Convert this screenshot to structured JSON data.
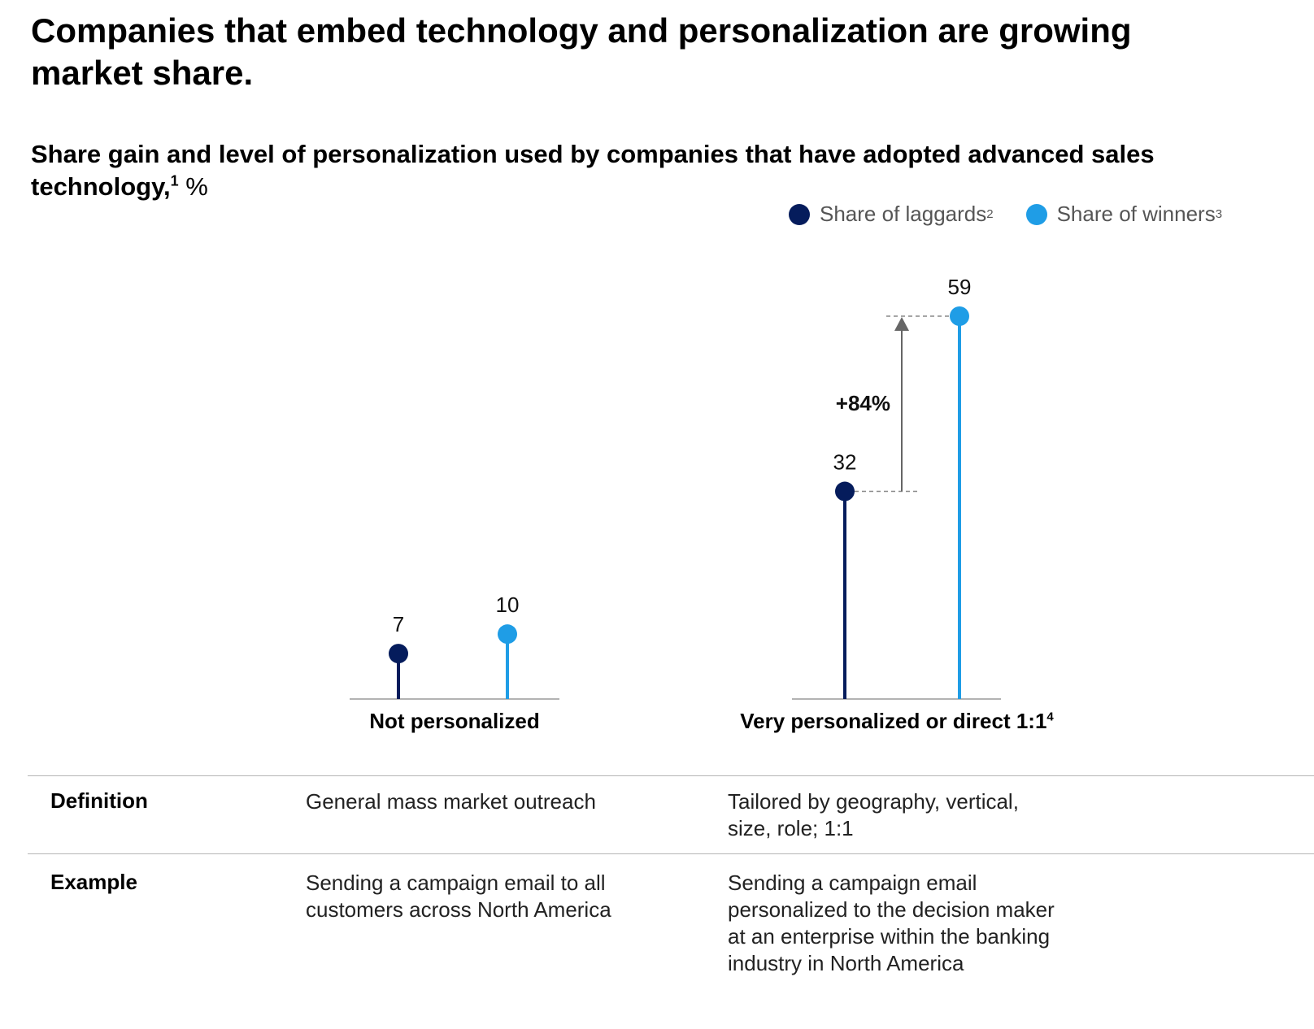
{
  "title": "Companies that embed technology and personalization are growing market share.",
  "subtitle": {
    "text": "Share gain and level of personalization used by companies that have adopted advanced sales technology,",
    "footnote": "1",
    "unit": "%"
  },
  "legend": [
    {
      "label": "Share of laggards",
      "footnote": "2",
      "color": "#051c5c"
    },
    {
      "label": "Share of winners",
      "footnote": "3",
      "color": "#1f9de6"
    }
  ],
  "chart_data": {
    "type": "lollipop",
    "title": "Share gain and level of personalization used by companies that have adopted advanced sales technology, %",
    "categories": [
      "Not personalized",
      "Very personalized or direct 1:1"
    ],
    "series": [
      {
        "name": "Share of laggards",
        "values": [
          7,
          32
        ],
        "color": "#051c5c"
      },
      {
        "name": "Share of winners",
        "values": [
          10,
          59
        ],
        "color": "#1f9de6"
      }
    ],
    "value_labels": [
      [
        "7",
        "10"
      ],
      [
        "32",
        "59"
      ]
    ],
    "annotation": {
      "text": "+84%",
      "category_index": 1,
      "from": 32,
      "to": 59
    },
    "ylim": [
      0,
      59
    ],
    "grid": false,
    "legend_position": "top-right"
  },
  "categories": [
    {
      "label": "Not personalized",
      "footnote": ""
    },
    {
      "label": "Very personalized or direct 1:1",
      "footnote": "4"
    }
  ],
  "table": {
    "rows": [
      {
        "header": "Definition",
        "col1": "General mass market outreach",
        "col2": "Tailored by geography, vertical,\nsize, role; 1:1"
      },
      {
        "header": "Example",
        "col1": "Sending a campaign email to all\ncustomers across North America",
        "col2": "Sending a campaign email\npersonalized to the decision maker\nat an enterprise within the banking\nindustry in North America"
      }
    ]
  }
}
